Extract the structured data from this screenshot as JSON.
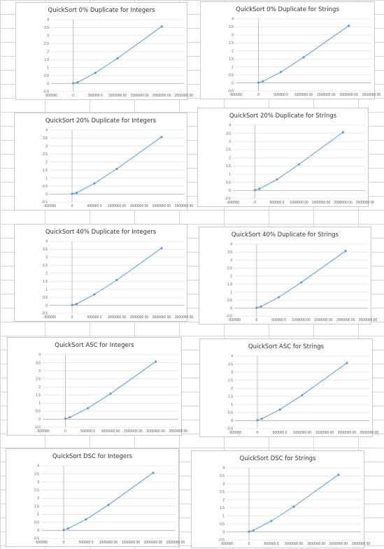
{
  "chart_data": [
    {
      "type": "scatter",
      "title": "QuickSort 0% Duplicate for Integers",
      "x": [
        0,
        100000,
        500000,
        1000000,
        2000000
      ],
      "y": [
        0.02,
        0.08,
        0.67,
        1.58,
        3.57
      ],
      "xlim": [
        -500000,
        2500000
      ],
      "ylim": [
        -0.5,
        4
      ],
      "x_ticks": [
        "-500000",
        "0",
        "500000 0",
        "1000000 00",
        "1500000 00",
        "2000000 00",
        "2500000 00"
      ],
      "y_ticks": [
        "4",
        "3.5",
        "3",
        "2.5",
        "2",
        "1.5",
        "1",
        "0.5",
        "0",
        "-0.5"
      ],
      "trendline": true,
      "grid": true,
      "legend": "none",
      "color": "#5b9bd5"
    },
    {
      "type": "scatter",
      "title": "QuickSort 0% Duplicate for Strings",
      "x": [
        0,
        100000,
        500000,
        1000000,
        2000000
      ],
      "y": [
        0.02,
        0.1,
        0.68,
        1.6,
        3.57
      ],
      "xlim": [
        -500000,
        2500000
      ],
      "ylim": [
        -0.5,
        4
      ],
      "x_ticks": [
        "-500000",
        "0",
        "500000 0",
        "1000000 00",
        "1500000 00",
        "2000000 00",
        "2500000 00"
      ],
      "y_ticks": [
        "4",
        "3.5",
        "3",
        "2.5",
        "2",
        "1.5",
        "1",
        "0.5",
        "0",
        "-0.5"
      ],
      "trendline": true,
      "grid": true,
      "legend": "none",
      "color": "#5b9bd5"
    },
    {
      "type": "scatter",
      "title": "QuickSort 20% Duplicate for Integers",
      "x": [
        0,
        100000,
        500000,
        1000000,
        2000000
      ],
      "y": [
        0.02,
        0.08,
        0.67,
        1.58,
        3.57
      ],
      "xlim": [
        -500000,
        2500000
      ],
      "ylim": [
        -0.5,
        4
      ],
      "x_ticks": [
        "-500000",
        "0",
        "500000 0",
        "1000000 00",
        "1500000 00",
        "2000000 00",
        "2500000 00"
      ],
      "y_ticks": [
        "4",
        "3.5",
        "3",
        "2.5",
        "2",
        "1.5",
        "1",
        "0.5",
        "0",
        "-0.5"
      ],
      "trendline": true,
      "grid": true,
      "legend": "none",
      "color": "#5b9bd5"
    },
    {
      "type": "scatter",
      "title": "QuickSort 20% Duplicate for Strings",
      "x": [
        0,
        100000,
        500000,
        1000000,
        2000000
      ],
      "y": [
        0.02,
        0.1,
        0.67,
        1.6,
        3.57
      ],
      "xlim": [
        -500000,
        2500000
      ],
      "ylim": [
        -0.5,
        4
      ],
      "x_ticks": [
        "-500000",
        "0",
        "500000 0",
        "1000000 00",
        "1500000 00",
        "2000000 00",
        "2500000 00"
      ],
      "y_ticks": [
        "4",
        "3.5",
        "3",
        "2.5",
        "2",
        "1.5",
        "1",
        "0.5",
        "0",
        "-0.5"
      ],
      "trendline": true,
      "grid": true,
      "legend": "none",
      "color": "#5b9bd5"
    },
    {
      "type": "scatter",
      "title": "QuickSort 40% Duplicate for Integers",
      "x": [
        0,
        100000,
        500000,
        1000000,
        2000000
      ],
      "y": [
        0.02,
        0.08,
        0.68,
        1.58,
        3.57
      ],
      "xlim": [
        -500000,
        2500000
      ],
      "ylim": [
        -0.5,
        4
      ],
      "x_ticks": [
        "-500000",
        "0",
        "500000 0",
        "1000000 00",
        "1500000 00",
        "2000000 00",
        "2500000 00"
      ],
      "y_ticks": [
        "4",
        "3.5",
        "3",
        "2.5",
        "2",
        "1.5",
        "1",
        "0.5",
        "0",
        "-0.5"
      ],
      "trendline": true,
      "grid": true,
      "legend": "none",
      "color": "#5b9bd5"
    },
    {
      "type": "scatter",
      "title": "QuickSort 40% Duplicate for Strings",
      "x": [
        0,
        100000,
        500000,
        1000000,
        2000000
      ],
      "y": [
        0.02,
        0.1,
        0.68,
        1.6,
        3.57
      ],
      "xlim": [
        -500000,
        2500000
      ],
      "ylim": [
        -0.5,
        4
      ],
      "x_ticks": [
        "-500000",
        "0",
        "500000 0",
        "1000000 00",
        "1500000 00",
        "2000000 00",
        "2500000 00"
      ],
      "y_ticks": [
        "4",
        "3.5",
        "3",
        "2.5",
        "2",
        "1.5",
        "1",
        "0.5",
        "0",
        "-0.5"
      ],
      "trendline": true,
      "grid": true,
      "legend": "none",
      "color": "#5b9bd5"
    },
    {
      "type": "scatter",
      "title": "QuickSort ASC for Integers",
      "x": [
        0,
        100000,
        500000,
        1000000,
        2000000
      ],
      "y": [
        0.03,
        0.12,
        0.68,
        1.58,
        3.57
      ],
      "xlim": [
        -500000,
        2500000
      ],
      "ylim": [
        -0.5,
        4
      ],
      "x_ticks": [
        "-500000",
        "0",
        "500000 0",
        "1000000 00",
        "1500000 00",
        "2000000 00",
        "2500000 00"
      ],
      "y_ticks": [
        "4",
        "3.5",
        "3",
        "2.5",
        "2",
        "1.5",
        "1",
        "0.5",
        "0",
        "-0.5"
      ],
      "trendline": true,
      "grid": true,
      "legend": "none",
      "color": "#5b9bd5"
    },
    {
      "type": "scatter",
      "title": "QuickSort ASC for Strings",
      "x": [
        0,
        100000,
        500000,
        1000000,
        2000000
      ],
      "y": [
        0.03,
        0.12,
        0.68,
        1.58,
        3.57
      ],
      "xlim": [
        -500000,
        2500000
      ],
      "ylim": [
        -0.5,
        4
      ],
      "x_ticks": [
        "-500000",
        "0",
        "500000 0",
        "1000000 00",
        "1500000 00",
        "2000000 00",
        "2500000 00"
      ],
      "y_ticks": [
        "4",
        "3.5",
        "3",
        "2.5",
        "2",
        "1.5",
        "1",
        "0.5",
        "0",
        "-0.5"
      ],
      "trendline": true,
      "grid": true,
      "legend": "none",
      "color": "#5b9bd5"
    },
    {
      "type": "scatter",
      "title": "QuickSort DSC for Integers",
      "x": [
        0,
        100000,
        500000,
        1000000,
        2000000
      ],
      "y": [
        0.03,
        0.12,
        0.68,
        1.58,
        3.57
      ],
      "xlim": [
        -500000,
        2500000
      ],
      "ylim": [
        -0.5,
        4
      ],
      "x_ticks": [
        "-500000",
        "0",
        "500000 0",
        "1000000 00",
        "1500000 00",
        "2000000 00",
        "2500000 00"
      ],
      "y_ticks": [
        "4",
        "3.5",
        "3",
        "2.5",
        "2",
        "1.5",
        "1",
        "0.5",
        "0",
        "-0.5"
      ],
      "trendline": true,
      "grid": true,
      "legend": "none",
      "color": "#5b9bd5"
    },
    {
      "type": "scatter",
      "title": "QuickSort DSC for Strings",
      "x": [
        0,
        100000,
        500000,
        1000000,
        2000000
      ],
      "y": [
        0.02,
        0.1,
        0.68,
        1.58,
        3.57
      ],
      "xlim": [
        -500000,
        2500000
      ],
      "ylim": [
        -0.5,
        4
      ],
      "x_ticks": [
        "-500000",
        "0",
        "500000 0",
        "1000000 00",
        "1500000 00",
        "2000000 00",
        "2500000 00"
      ],
      "y_ticks": [
        "4",
        "3.5",
        "3",
        "2.5",
        "2",
        "1.5",
        "1",
        "0.5",
        "0",
        "-0.5"
      ],
      "trendline": true,
      "grid": true,
      "legend": "none",
      "color": "#5b9bd5"
    }
  ]
}
